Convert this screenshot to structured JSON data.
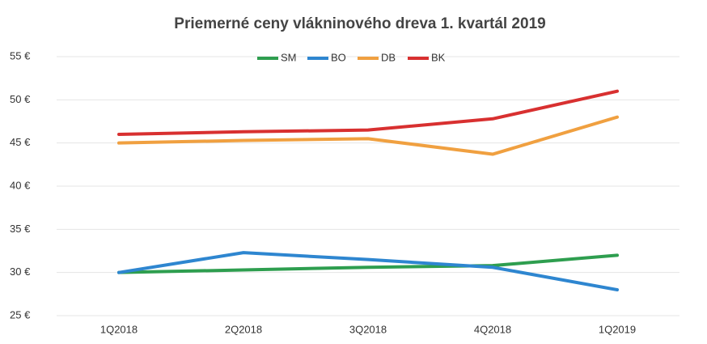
{
  "chart_data": {
    "type": "line",
    "title": "Priemerné ceny vlákninového dreva 1. kvartál 2019",
    "categories": [
      "1Q2018",
      "2Q2018",
      "3Q2018",
      "4Q2018",
      "1Q2019"
    ],
    "series": [
      {
        "name": "SM",
        "color": "#2e9e4f",
        "values": [
          30,
          30.3,
          30.6,
          30.8,
          32
        ]
      },
      {
        "name": "BO",
        "color": "#2e86d0",
        "values": [
          30,
          32.3,
          31.5,
          30.6,
          28
        ]
      },
      {
        "name": "DB",
        "color": "#f0a040",
        "values": [
          45,
          45.3,
          45.5,
          43.7,
          48
        ]
      },
      {
        "name": "BK",
        "color": "#d83030",
        "values": [
          46,
          46.3,
          46.5,
          47.8,
          51
        ]
      }
    ],
    "ylim": [
      25,
      55
    ],
    "yticks": [
      {
        "value": 25,
        "label": "25 €"
      },
      {
        "value": 30,
        "label": "30 €"
      },
      {
        "value": 35,
        "label": "35 €"
      },
      {
        "value": 40,
        "label": "40 €"
      },
      {
        "value": 45,
        "label": "45 €"
      },
      {
        "value": 50,
        "label": "50 €"
      },
      {
        "value": 55,
        "label": "55 €"
      }
    ],
    "grid": true,
    "legend": "top"
  }
}
